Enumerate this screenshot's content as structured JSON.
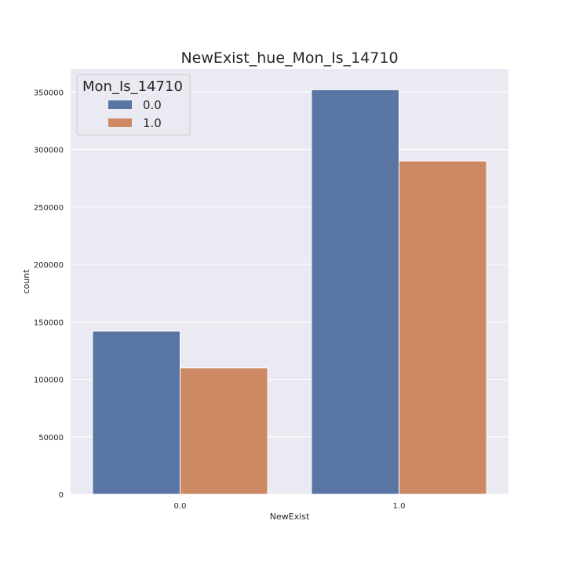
{
  "chart_data": {
    "type": "bar",
    "title": "NewExist_hue_Mon_Is_14710",
    "xlabel": "NewExist",
    "ylabel": "count",
    "categories": [
      "0.0",
      "1.0"
    ],
    "series": [
      {
        "name": "0.0",
        "values": [
          142000,
          352000
        ],
        "color": "#5975a4"
      },
      {
        "name": "1.0",
        "values": [
          110000,
          290000
        ],
        "color": "#cc8963"
      }
    ],
    "legend": {
      "title": "Mon_Is_14710",
      "placement": "top-left"
    },
    "ylim": [
      0,
      370000
    ],
    "yticks": [
      0,
      50000,
      100000,
      150000,
      200000,
      250000,
      300000,
      350000
    ],
    "grid": true,
    "colors": {
      "background": "#eaeaf2",
      "grid": "#ffffff"
    }
  }
}
